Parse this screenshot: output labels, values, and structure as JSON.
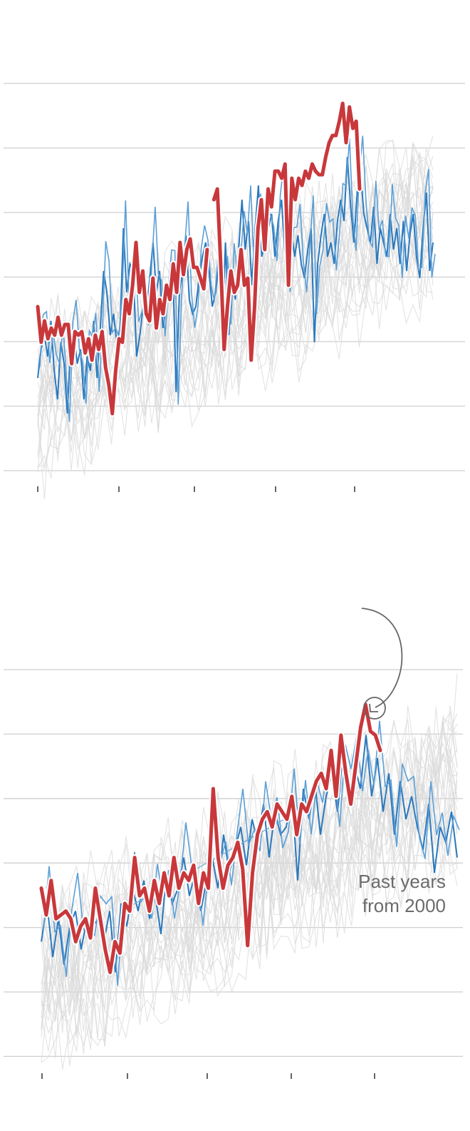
{
  "chart_data": [
    {
      "type": "line",
      "title": "",
      "xlabel": "",
      "ylabel": "",
      "grid": true,
      "x_ticks": [
        "",
        "",
        "",
        "",
        ""
      ],
      "series": [
        {
          "role": "highlight",
          "color": "#c8383b",
          "values": [
            0.7,
            0.2,
            0.5,
            0.25,
            0.4,
            0.3,
            0.55,
            0.3,
            0.45,
            0.45,
            -0.1,
            0.35,
            0.3,
            0.35,
            0.05,
            0.25,
            -0.05,
            0.3,
            0.1,
            0.35,
            -0.15,
            -0.4,
            -0.8,
            -0.2,
            0.25,
            0.2,
            0.8,
            0.6,
            1.0,
            1.6,
            0.9,
            1.2,
            0.6,
            0.5,
            1.1,
            0.4,
            0.8,
            0.6,
            1.0,
            0.8,
            1.3,
            0.9,
            1.6,
            1.15,
            1.5,
            1.65,
            1.25,
            1.25,
            1.1,
            0.95,
            1.5,
            null,
            2.2,
            2.35,
            1.3,
            0.1,
            0.7,
            1.2,
            0.9,
            1.0,
            1.5,
            1.0,
            1.1,
            -0.05,
            0.7,
            1.8,
            2.2,
            1.5,
            2.35,
            2.1,
            2.6,
            2.6,
            2.5,
            2.7,
            1.0,
            2.5,
            2.2,
            2.5,
            2.4,
            2.6,
            2.5,
            2.7,
            2.6,
            2.55,
            2.55,
            2.8,
            3.0,
            3.1,
            3.1,
            3.3,
            3.55,
            3.0,
            3.5,
            3.2,
            3.3,
            2.35
          ],
          "annotation": ""
        },
        {
          "role": "comparison",
          "color": "#2a78bd",
          "values": [
            -0.3,
            0.1,
            0.3,
            0.0,
            0.5,
            -0.2,
            -0.6,
            0.2,
            -0.1,
            -0.8,
            0.2,
            0.3,
            -0.1,
            0.1,
            -0.6,
            0.0,
            -0.2,
            0.5,
            -0.3,
            0.4,
            1.2,
            0.9,
            0.3,
            0.6,
            0.2,
            0.4,
            1.8,
            0.9,
            1.3,
            1.2,
            0.0,
            0.3,
            0.7,
            0.6,
            1.1,
            1.6,
            0.9,
            1.2,
            0.4,
            0.7,
            1.0,
            1.3,
            -0.5,
            0.9,
            1.2,
            1.7,
            0.8,
            0.6,
            0.7,
            1.1,
            1.4,
            1.6,
            1.2,
            0.7,
            0.9,
            1.3,
            0.2,
            1.6,
            0.3,
            1.1,
            0.8,
            1.5,
            2.2,
            1.5,
            1.9,
            1.0,
            1.8,
            2.4,
            1.4,
            1.6,
            1.8,
            2.0,
            1.4,
            1.9,
            2.2,
            1.5,
            1.1,
            1.8,
            1.4,
            1.7,
            1.3,
            1.1,
            1.5,
            1.8,
            0.2,
            1.3,
            1.7,
            2.0,
            1.4,
            1.6,
            1.3,
            1.9,
            2.2,
            1.9,
            2.8,
            2.1,
            1.6,
            2.3,
            2.6,
            2.0,
            1.8,
            1.6,
            2.1,
            1.3,
            1.8,
            1.6,
            1.4,
            2.0,
            1.5,
            1.8,
            1.3,
            1.9,
            1.2,
            1.7,
            2.0,
            1.4,
            1.1,
            1.8,
            2.3,
            1.2,
            1.6
          ]
        }
      ]
    },
    {
      "type": "line",
      "title": "",
      "xlabel": "",
      "ylabel": "",
      "grid": true,
      "x_ticks": [
        "",
        "",
        "",
        "",
        ""
      ],
      "annotation_text": [
        "Past years",
        "from 2000"
      ],
      "series": [
        {
          "role": "highlight",
          "color": "#c8383b",
          "values": [
            0.5,
            0.15,
            0.6,
            0.1,
            0.15,
            0.2,
            0.1,
            -0.2,
            0.0,
            0.1,
            -0.15,
            0.5,
            0.1,
            -0.3,
            -0.6,
            -0.2,
            -0.35,
            0.3,
            0.2,
            0.9,
            0.4,
            0.5,
            0.2,
            0.6,
            0.3,
            0.7,
            0.4,
            0.9,
            0.5,
            0.7,
            0.6,
            0.8,
            0.3,
            0.7,
            0.5,
            1.8,
            0.9,
            0.5,
            0.8,
            0.9,
            1.1,
            0.75,
            -0.25,
            0.7,
            1.2,
            1.4,
            1.5,
            1.3,
            1.6,
            1.5,
            1.4,
            1.7,
            1.2,
            1.6,
            1.5,
            1.7,
            1.9,
            2.0,
            1.8,
            2.3,
            1.7,
            2.5,
            2.0,
            1.6,
            2.1,
            2.6,
            2.9,
            2.55,
            2.5,
            2.3
          ],
          "annotation": ""
        },
        {
          "role": "comparison",
          "color": "#2a78bd",
          "values": [
            -0.2,
            0.3,
            -0.4,
            0.1,
            -0.5,
            0.0,
            0.2,
            -0.3,
            0.1,
            0.0,
            0.1,
            -0.2,
            0.2,
            -0.6,
            0.3,
            0.0,
            0.5,
            0.2,
            0.6,
            0.1,
            0.4,
            -0.1,
            0.7,
            0.3,
            0.5,
            0.9,
            0.4,
            0.7,
            0.2,
            0.6,
            0.9,
            0.5,
            1.2,
            0.7,
            1.0,
            1.3,
            0.8,
            1.4,
            1.1,
            1.6,
            0.9,
            1.5,
            1.2,
            1.3,
            1.7,
            0.6,
            1.8,
            1.4,
            1.9,
            1.2,
            1.7,
            2.0,
            1.5,
            2.3,
            1.6,
            2.1,
            1.8,
            2.5,
            1.7,
            2.2,
            1.5,
            2.0,
            1.2,
            1.9,
            1.4,
            1.7,
            1.3,
            1.0,
            1.6,
            0.7,
            1.3,
            1.1,
            1.5,
            0.9
          ]
        }
      ]
    }
  ]
}
